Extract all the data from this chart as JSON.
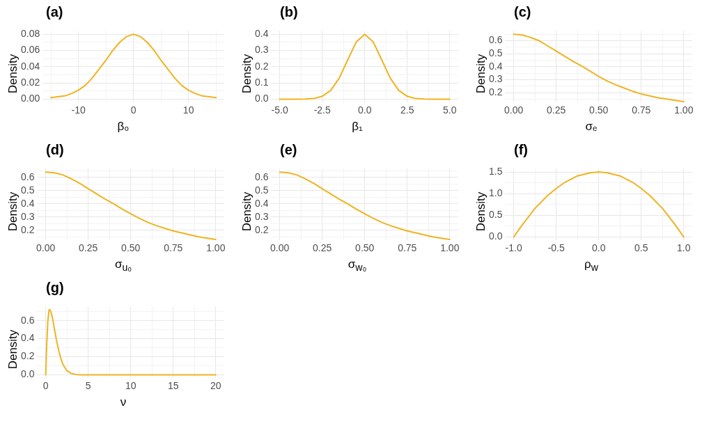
{
  "chart_data": [
    {
      "type": "line",
      "title": "(a)",
      "xlabel": "β₀",
      "ylabel": "Density",
      "grid": true,
      "marker": "none",
      "line_style": "solid",
      "legend": false,
      "xlim": [
        -16.5,
        16.5
      ],
      "xticks": [
        {
          "value": -15,
          "label": null
        },
        -10,
        {
          "value": -5,
          "label": null
        },
        0,
        {
          "value": 5,
          "label": null
        },
        10,
        {
          "value": 15,
          "label": null
        }
      ],
      "ylim": [
        -0.004,
        0.084
      ],
      "yticks": [
        {
          "value": 0,
          "label": "0.00"
        },
        {
          "value": 0.01,
          "label": null
        },
        0.02,
        {
          "value": 0.03,
          "label": null
        },
        0.04,
        {
          "value": 0.05,
          "label": null
        },
        0.06,
        {
          "value": 0.07,
          "label": null
        },
        0.08
      ],
      "series": [
        {
          "color": "#efb31f",
          "x": [
            -15,
            -13.75,
            -12.5,
            -11.25,
            -10,
            -8.75,
            -7.5,
            -6.25,
            -5,
            -3.75,
            -2.5,
            -1.25,
            0,
            1.25,
            2.5,
            3.75,
            5,
            6.25,
            7.5,
            8.75,
            10,
            11.25,
            12.5,
            13.75,
            15
          ],
          "values": [
            0.002,
            0.003,
            0.004,
            0.007,
            0.011,
            0.017,
            0.026,
            0.037,
            0.048,
            0.06,
            0.07,
            0.077,
            0.08,
            0.077,
            0.07,
            0.06,
            0.048,
            0.037,
            0.026,
            0.017,
            0.011,
            0.007,
            0.004,
            0.003,
            0.002
          ]
        }
      ]
    },
    {
      "type": "line",
      "title": "(b)",
      "xlabel": "β₁",
      "ylabel": "Density",
      "grid": true,
      "marker": "none",
      "line_style": "solid",
      "legend": false,
      "xlim": [
        -5.5,
        5.5
      ],
      "xticks": [
        {
          "value": -5,
          "label": "-5.0"
        },
        {
          "value": -3.75,
          "label": null
        },
        {
          "value": -2.5,
          "label": "-2.5"
        },
        {
          "value": -1.25,
          "label": null
        },
        {
          "value": 0,
          "label": "0.0"
        },
        {
          "value": 1.25,
          "label": null
        },
        {
          "value": 2.5,
          "label": "2.5"
        },
        {
          "value": 3.75,
          "label": null
        },
        {
          "value": 5,
          "label": "5.0"
        }
      ],
      "ylim": [
        -0.02,
        0.42
      ],
      "yticks": [
        {
          "value": 0,
          "label": "0.0"
        },
        {
          "value": 0.05,
          "label": null
        },
        0.1,
        {
          "value": 0.15,
          "label": null
        },
        0.2,
        {
          "value": 0.25,
          "label": null
        },
        0.3,
        {
          "value": 0.35,
          "label": null
        },
        0.4
      ],
      "series": [
        {
          "color": "#efb31f",
          "x": [
            -5,
            -4,
            -3.5,
            -3,
            -2.5,
            -2,
            -1.5,
            -1,
            -0.5,
            0,
            0.5,
            1,
            1.5,
            2,
            2.5,
            3,
            3.5,
            4,
            5
          ],
          "values": [
            0,
            0,
            0.001,
            0.004,
            0.018,
            0.054,
            0.13,
            0.242,
            0.352,
            0.399,
            0.352,
            0.242,
            0.13,
            0.054,
            0.018,
            0.004,
            0.001,
            0,
            0
          ]
        }
      ]
    },
    {
      "type": "line",
      "title": "(c)",
      "xlabel": "σₑ",
      "ylabel": "Density",
      "grid": true,
      "marker": "none",
      "line_style": "solid",
      "legend": false,
      "xlim": [
        -0.05,
        1.05
      ],
      "xticks": [
        {
          "value": 0,
          "label": "0.00"
        },
        {
          "value": 0.125,
          "label": null
        },
        0.25,
        {
          "value": 0.375,
          "label": null
        },
        {
          "value": 0.5,
          "label": "0.50"
        },
        {
          "value": 0.625,
          "label": null
        },
        0.75,
        {
          "value": 0.875,
          "label": null
        },
        {
          "value": 1,
          "label": "1.00"
        }
      ],
      "ylim": [
        0.124,
        0.676
      ],
      "yticks": [
        {
          "value": 0.15,
          "label": null
        },
        0.2,
        {
          "value": 0.25,
          "label": null
        },
        0.3,
        {
          "value": 0.35,
          "label": null
        },
        0.4,
        {
          "value": 0.45,
          "label": null
        },
        0.5,
        {
          "value": 0.55,
          "label": null
        },
        0.6,
        {
          "value": 0.65,
          "label": null
        }
      ],
      "series": [
        {
          "color": "#efb31f",
          "x": [
            0,
            0.05,
            0.1,
            0.15,
            0.2,
            0.25,
            0.3,
            0.35,
            0.4,
            0.45,
            0.5,
            0.55,
            0.6,
            0.65,
            0.7,
            0.75,
            0.8,
            0.85,
            0.9,
            0.95,
            1
          ],
          "values": [
            0.65,
            0.645,
            0.625,
            0.6,
            0.56,
            0.52,
            0.48,
            0.44,
            0.405,
            0.365,
            0.325,
            0.29,
            0.26,
            0.235,
            0.21,
            0.19,
            0.175,
            0.16,
            0.15,
            0.14,
            0.13
          ]
        }
      ]
    },
    {
      "type": "line",
      "title": "(d)",
      "xlabel": "σ$_{u₀}$",
      "ylabel": "Density",
      "grid": true,
      "marker": "none",
      "line_style": "solid",
      "legend": false,
      "xlim": [
        -0.05,
        1.05
      ],
      "xticks": [
        {
          "value": 0,
          "label": "0.00"
        },
        {
          "value": 0.125,
          "label": null
        },
        0.25,
        {
          "value": 0.375,
          "label": null
        },
        {
          "value": 0.5,
          "label": "0.50"
        },
        {
          "value": 0.625,
          "label": null
        },
        0.75,
        {
          "value": 0.875,
          "label": null
        },
        {
          "value": 1,
          "label": "1.00"
        }
      ],
      "ylim": [
        0.124,
        0.666
      ],
      "yticks": [
        {
          "value": 0.15,
          "label": null
        },
        0.2,
        {
          "value": 0.25,
          "label": null
        },
        0.3,
        {
          "value": 0.35,
          "label": null
        },
        0.4,
        {
          "value": 0.45,
          "label": null
        },
        0.5,
        {
          "value": 0.55,
          "label": null
        },
        0.6,
        {
          "value": 0.65,
          "label": null
        }
      ],
      "series": [
        {
          "color": "#efb31f",
          "x": [
            0,
            0.05,
            0.1,
            0.15,
            0.2,
            0.25,
            0.3,
            0.35,
            0.4,
            0.45,
            0.5,
            0.55,
            0.6,
            0.65,
            0.7,
            0.75,
            0.8,
            0.85,
            0.9,
            0.95,
            1
          ],
          "values": [
            0.64,
            0.635,
            0.62,
            0.59,
            0.555,
            0.515,
            0.475,
            0.435,
            0.4,
            0.36,
            0.325,
            0.29,
            0.26,
            0.235,
            0.215,
            0.195,
            0.18,
            0.165,
            0.15,
            0.14,
            0.13
          ]
        }
      ]
    },
    {
      "type": "line",
      "title": "(e)",
      "xlabel": "σ$_{w₀}$",
      "ylabel": "Density",
      "grid": true,
      "marker": "none",
      "line_style": "solid",
      "legend": false,
      "xlim": [
        -0.05,
        1.05
      ],
      "xticks": [
        {
          "value": 0,
          "label": "0.00"
        },
        {
          "value": 0.125,
          "label": null
        },
        0.25,
        {
          "value": 0.375,
          "label": null
        },
        {
          "value": 0.5,
          "label": "0.50"
        },
        {
          "value": 0.625,
          "label": null
        },
        0.75,
        {
          "value": 0.875,
          "label": null
        },
        {
          "value": 1,
          "label": "1.00"
        }
      ],
      "ylim": [
        0.124,
        0.666
      ],
      "yticks": [
        {
          "value": 0.15,
          "label": null
        },
        0.2,
        {
          "value": 0.25,
          "label": null
        },
        0.3,
        {
          "value": 0.35,
          "label": null
        },
        0.4,
        {
          "value": 0.45,
          "label": null
        },
        0.5,
        {
          "value": 0.55,
          "label": null
        },
        0.6,
        {
          "value": 0.65,
          "label": null
        }
      ],
      "series": [
        {
          "color": "#efb31f",
          "x": [
            0,
            0.05,
            0.1,
            0.15,
            0.2,
            0.25,
            0.3,
            0.35,
            0.4,
            0.45,
            0.5,
            0.55,
            0.6,
            0.65,
            0.7,
            0.75,
            0.8,
            0.85,
            0.9,
            0.95,
            1
          ],
          "values": [
            0.64,
            0.635,
            0.62,
            0.59,
            0.555,
            0.515,
            0.475,
            0.435,
            0.4,
            0.36,
            0.325,
            0.29,
            0.26,
            0.235,
            0.215,
            0.195,
            0.18,
            0.165,
            0.15,
            0.14,
            0.13
          ]
        }
      ]
    },
    {
      "type": "line",
      "title": "(f)",
      "xlabel": "ρ$_{w}$",
      "ylabel": "Density",
      "grid": true,
      "marker": "none",
      "line_style": "solid",
      "legend": false,
      "xlim": [
        -1.1,
        1.1
      ],
      "xticks": [
        {
          "value": -1,
          "label": "-1.0"
        },
        {
          "value": -0.75,
          "label": null
        },
        -0.5,
        {
          "value": -0.25,
          "label": null
        },
        {
          "value": 0,
          "label": "0.0"
        },
        {
          "value": 0.25,
          "label": null
        },
        0.5,
        {
          "value": 0.75,
          "label": null
        },
        {
          "value": 1,
          "label": "1.0"
        }
      ],
      "ylim": [
        -0.075,
        1.575
      ],
      "yticks": [
        {
          "value": 0,
          "label": "0.0"
        },
        {
          "value": 0.25,
          "label": null
        },
        0.5,
        {
          "value": 0.75,
          "label": null
        },
        {
          "value": 1,
          "label": "1.0"
        },
        {
          "value": 1.25,
          "label": null
        },
        1.5
      ],
      "series": [
        {
          "color": "#efb31f",
          "x": [
            -1,
            -0.9,
            -0.75,
            -0.6,
            -0.5,
            -0.4,
            -0.25,
            -0.1,
            0,
            0.1,
            0.25,
            0.4,
            0.5,
            0.6,
            0.75,
            0.9,
            1
          ],
          "values": [
            0,
            0.28,
            0.66,
            0.96,
            1.12,
            1.26,
            1.41,
            1.48,
            1.5,
            1.48,
            1.41,
            1.26,
            1.12,
            0.96,
            0.66,
            0.28,
            0
          ]
        }
      ]
    },
    {
      "type": "line",
      "title": "(g)",
      "xlabel": "ν",
      "ylabel": "Density",
      "grid": true,
      "marker": "none",
      "line_style": "solid",
      "legend": false,
      "xlim": [
        -1,
        21
      ],
      "xticks": [
        0,
        {
          "value": 2.5,
          "label": null
        },
        5,
        {
          "value": 7.5,
          "label": null
        },
        10,
        {
          "value": 12.5,
          "label": null
        },
        15,
        {
          "value": 17.5,
          "label": null
        },
        20
      ],
      "ylim": [
        -0.036,
        0.756
      ],
      "yticks": [
        {
          "value": 0,
          "label": "0.0"
        },
        {
          "value": 0.1,
          "label": null
        },
        0.2,
        {
          "value": 0.3,
          "label": null
        },
        0.4,
        {
          "value": 0.5,
          "label": null
        },
        0.6,
        {
          "value": 0.7,
          "label": null
        }
      ],
      "series": [
        {
          "color": "#efb31f",
          "x": [
            0,
            0.1,
            0.25,
            0.4,
            0.5,
            0.6,
            0.75,
            1,
            1.25,
            1.5,
            1.75,
            2,
            2.5,
            3,
            3.5,
            4,
            6,
            10,
            15,
            20
          ],
          "values": [
            0,
            0.3,
            0.6,
            0.72,
            0.72,
            0.7,
            0.65,
            0.52,
            0.39,
            0.28,
            0.19,
            0.12,
            0.045,
            0.015,
            0.005,
            0,
            0,
            0,
            0,
            0
          ]
        }
      ]
    }
  ]
}
